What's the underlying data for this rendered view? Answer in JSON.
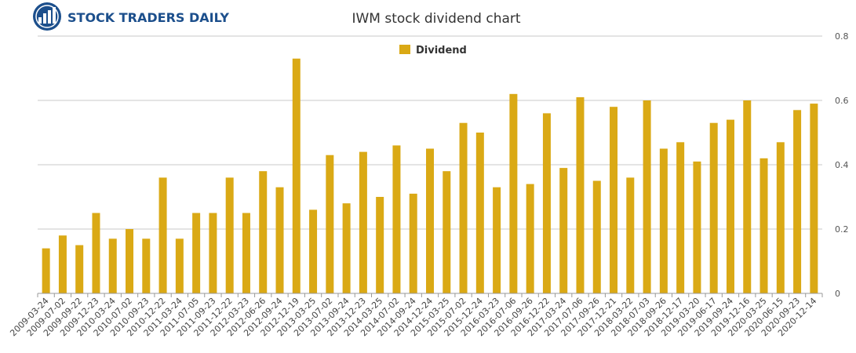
{
  "brand": {
    "name": "STOCK TRADERS DAILY"
  },
  "colors": {
    "bar": "#DAA915",
    "grid": "#c8c8c8",
    "axis": "#999999",
    "brand": "#1c4f8c"
  },
  "chart_data": {
    "type": "bar",
    "title": "IWM stock dividend chart",
    "xlabel": "",
    "ylabel": "",
    "legend": {
      "position": "top-center",
      "entries": [
        "Dividend"
      ]
    },
    "grid": true,
    "ylim": [
      0,
      0.8
    ],
    "yticks": [
      0,
      0.2,
      0.4,
      0.6,
      0.8
    ],
    "ytick_labels": [
      "0",
      "0.2",
      "0.4",
      "0.6",
      "0.8"
    ],
    "y_axis_side": "right",
    "categories": [
      "2009-03-24",
      "2009-07-02",
      "2009-09-22",
      "2009-12-23",
      "2010-03-24",
      "2010-07-02",
      "2010-09-23",
      "2010-12-22",
      "2011-03-24",
      "2011-07-05",
      "2011-09-23",
      "2011-12-22",
      "2012-03-23",
      "2012-06-26",
      "2012-09-24",
      "2012-12-19",
      "2013-03-25",
      "2013-07-02",
      "2013-09-24",
      "2013-12-23",
      "2014-03-25",
      "2014-07-02",
      "2014-09-24",
      "2014-12-24",
      "2015-03-25",
      "2015-07-02",
      "2015-12-24",
      "2016-03-23",
      "2016-07-06",
      "2016-09-26",
      "2016-12-22",
      "2017-03-24",
      "2017-07-06",
      "2017-09-26",
      "2017-12-21",
      "2018-03-22",
      "2018-07-03",
      "2018-09-26",
      "2018-12-17",
      "2019-03-20",
      "2019-06-17",
      "2019-09-24",
      "2019-12-16",
      "2020-03-25",
      "2020-06-15",
      "2020-09-23",
      "2020-12-14"
    ],
    "series": [
      {
        "name": "Dividend",
        "values": [
          0.14,
          0.18,
          0.15,
          0.25,
          0.17,
          0.2,
          0.17,
          0.36,
          0.17,
          0.25,
          0.25,
          0.36,
          0.25,
          0.38,
          0.33,
          0.73,
          0.26,
          0.43,
          0.28,
          0.44,
          0.3,
          0.46,
          0.31,
          0.45,
          0.38,
          0.53,
          0.5,
          0.33,
          0.62,
          0.34,
          0.56,
          0.39,
          0.61,
          0.35,
          0.58,
          0.36,
          0.6,
          0.45,
          0.47,
          0.41,
          0.53,
          0.54,
          0.6,
          0.42,
          0.47,
          0.57,
          0.59
        ]
      }
    ]
  }
}
